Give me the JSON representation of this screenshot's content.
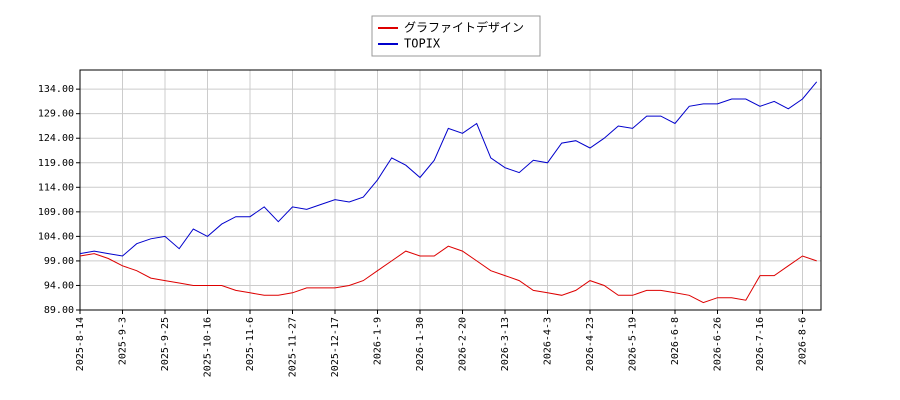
{
  "chart_data": {
    "type": "line",
    "categories": [
      "2025-8-14",
      null,
      null,
      "2025-9-3",
      null,
      null,
      "2025-9-25",
      null,
      null,
      "2025-10-16",
      null,
      null,
      "2025-11-6",
      null,
      null,
      "2025-11-27",
      null,
      null,
      "2025-12-17",
      null,
      null,
      "2026-1-9",
      null,
      null,
      "2026-1-30",
      null,
      null,
      "2026-2-20",
      null,
      null,
      "2026-3-13",
      null,
      null,
      "2026-4-3",
      null,
      null,
      "2026-4-23",
      null,
      null,
      "2026-5-19",
      null,
      null,
      "2026-6-8",
      null,
      null,
      "2026-6-26",
      null,
      null,
      "2026-7-16",
      null,
      null,
      "2026-8-6",
      null
    ],
    "series": [
      {
        "name": "グラファイトデザイン",
        "color": "#dd0000",
        "values": [
          100,
          100.5,
          99.5,
          98,
          97,
          95.5,
          95,
          94.5,
          94,
          94,
          94,
          93,
          92.5,
          92,
          92,
          92.5,
          93.5,
          93.5,
          93.5,
          94,
          95,
          97,
          99,
          101,
          100,
          100,
          102,
          101,
          99,
          97,
          96,
          95,
          93,
          92.5,
          92,
          93,
          95,
          94,
          92,
          92,
          93,
          93,
          92.5,
          92,
          90.5,
          91.5,
          91.5,
          91,
          96,
          96,
          98,
          100,
          99
        ]
      },
      {
        "name": "TOPIX",
        "color": "#0000cc",
        "values": [
          100.5,
          101,
          100.5,
          100,
          102.5,
          103.5,
          104,
          101.5,
          105.5,
          104,
          106.5,
          108,
          108,
          110,
          107,
          110,
          109.5,
          110.5,
          111.5,
          111,
          112,
          115.5,
          120,
          118.5,
          116,
          119.5,
          126,
          125,
          127,
          120,
          118,
          117,
          119.5,
          119,
          123,
          123.5,
          122,
          124,
          126.5,
          126,
          128.5,
          128.5,
          127,
          130.5,
          131,
          131,
          132,
          132,
          130.5,
          131.5,
          130,
          132,
          135.5
        ]
      }
    ],
    "ylim": [
      89,
      137.9
    ],
    "yticks": [
      {
        "value": 89,
        "label": "89.00"
      },
      {
        "value": 94,
        "label": "94.00"
      },
      {
        "value": 99,
        "label": "99.00"
      },
      {
        "value": 104,
        "label": "104.00"
      },
      {
        "value": 109,
        "label": "109.00"
      },
      {
        "value": 114,
        "label": "114.00"
      },
      {
        "value": 119,
        "label": "119.00"
      },
      {
        "value": 124,
        "label": "124.00"
      },
      {
        "value": 129,
        "label": "129.00"
      },
      {
        "value": 134,
        "label": "134.00"
      }
    ],
    "grid": true,
    "legend": "top"
  }
}
